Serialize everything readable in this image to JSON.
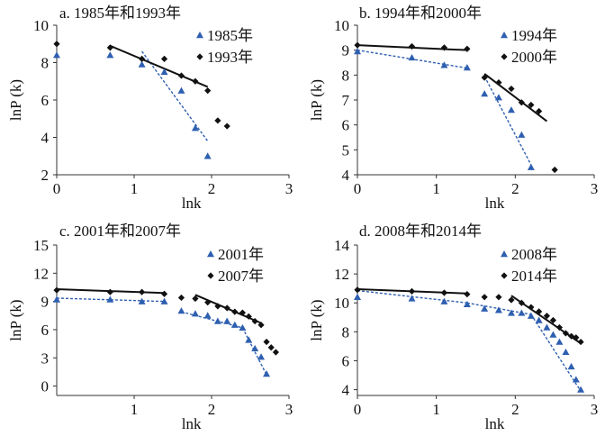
{
  "chart_data": [
    {
      "type": "scatter",
      "title": "a. 1985年和1993年",
      "xlabel": "lnk",
      "ylabel": "lnP (k)",
      "xlim": [
        0,
        3
      ],
      "ylim": [
        2,
        10
      ],
      "xticks": [
        "0",
        "1",
        "2",
        "3"
      ],
      "yticks": [
        "2",
        "4",
        "6",
        "8",
        "10"
      ],
      "legend_position": "top-right",
      "series": [
        {
          "name": "1985年",
          "marker": "triangle",
          "color": "#2e5fb0",
          "points": [
            [
              0,
              8.4
            ],
            [
              0.69,
              8.4
            ],
            [
              1.1,
              7.9
            ],
            [
              1.39,
              7.5
            ],
            [
              1.61,
              6.5
            ],
            [
              1.79,
              4.5
            ],
            [
              1.95,
              3.0
            ]
          ],
          "fit_line": [
            [
              1.1,
              8.6
            ],
            [
              1.95,
              3.8
            ]
          ],
          "fit_style": "dashed"
        },
        {
          "name": "1993年",
          "marker": "diamond",
          "color": "#111111",
          "points": [
            [
              0,
              9.0
            ],
            [
              0.69,
              8.8
            ],
            [
              1.1,
              8.2
            ],
            [
              1.39,
              8.2
            ],
            [
              1.61,
              7.3
            ],
            [
              1.79,
              7.0
            ],
            [
              1.95,
              6.5
            ],
            [
              2.08,
              4.9
            ],
            [
              2.2,
              4.6
            ]
          ],
          "fit_line": [
            [
              0.69,
              8.9
            ],
            [
              1.95,
              6.7
            ]
          ],
          "fit_style": "solid"
        }
      ]
    },
    {
      "type": "scatter",
      "title": "b. 1994年和2000年",
      "xlabel": "lnk",
      "ylabel": "lnP (k)",
      "xlim": [
        0,
        3
      ],
      "ylim": [
        4,
        10
      ],
      "xticks": [
        "0",
        "1",
        "2",
        "3"
      ],
      "yticks": [
        "4",
        "5",
        "6",
        "7",
        "8",
        "9",
        "10"
      ],
      "legend_position": "top-right",
      "series": [
        {
          "name": "1994年",
          "marker": "triangle",
          "color": "#2e5fb0",
          "points": [
            [
              0,
              8.95
            ],
            [
              0.69,
              8.7
            ],
            [
              1.1,
              8.4
            ],
            [
              1.39,
              8.3
            ],
            [
              1.61,
              7.25
            ],
            [
              1.79,
              7.1
            ],
            [
              1.95,
              6.6
            ],
            [
              2.08,
              5.6
            ],
            [
              2.2,
              4.3
            ]
          ],
          "segments": [
            {
              "line": [
                [
                  0,
                  9.0
                ],
                [
                  1.39,
                  8.28
                ]
              ],
              "style": "dashed"
            },
            {
              "line": [
                [
                  1.61,
                  7.95
                ],
                [
                  2.2,
                  4.4
                ]
              ],
              "style": "dashed"
            }
          ]
        },
        {
          "name": "2000年",
          "marker": "diamond",
          "color": "#111111",
          "points": [
            [
              0,
              9.2
            ],
            [
              0.69,
              9.15
            ],
            [
              1.1,
              9.1
            ],
            [
              1.39,
              9.05
            ],
            [
              1.61,
              7.9
            ],
            [
              1.79,
              7.7
            ],
            [
              1.95,
              7.45
            ],
            [
              2.08,
              6.9
            ],
            [
              2.2,
              6.8
            ],
            [
              2.3,
              6.55
            ],
            [
              2.5,
              4.2
            ]
          ],
          "segments": [
            {
              "line": [
                [
                  0,
                  9.2
                ],
                [
                  1.39,
                  9.0
                ]
              ],
              "style": "solid"
            },
            {
              "line": [
                [
                  1.61,
                  8.05
                ],
                [
                  2.4,
                  6.15
                ]
              ],
              "style": "solid"
            }
          ]
        }
      ]
    },
    {
      "type": "scatter",
      "title": "c. 2001年和2007年",
      "xlabel": "lnk",
      "ylabel": "lnP (k)",
      "xlim": [
        0,
        3
      ],
      "ylim": [
        -1,
        15
      ],
      "xticks": [
        "1",
        "2",
        "3"
      ],
      "yticks": [
        "0",
        "3",
        "6",
        "9",
        "12",
        "15"
      ],
      "legend_position": "top-right",
      "series": [
        {
          "name": "2001年",
          "marker": "triangle",
          "color": "#2e5fb0",
          "points": [
            [
              0,
              9.2
            ],
            [
              0.69,
              9.2
            ],
            [
              1.1,
              9.0
            ],
            [
              1.39,
              9.0
            ],
            [
              1.61,
              8.0
            ],
            [
              1.79,
              7.7
            ],
            [
              1.95,
              7.5
            ],
            [
              2.08,
              6.9
            ],
            [
              2.2,
              6.9
            ],
            [
              2.3,
              6.5
            ],
            [
              2.4,
              6.2
            ],
            [
              2.48,
              4.9
            ],
            [
              2.56,
              4.0
            ],
            [
              2.64,
              3.1
            ],
            [
              2.71,
              1.3
            ]
          ],
          "segments": [
            {
              "line": [
                [
                  0,
                  9.35
                ],
                [
                  1.39,
                  9.0
                ]
              ],
              "style": "dashed"
            },
            {
              "line": [
                [
                  1.61,
                  7.9
                ],
                [
                  2.4,
                  6.2
                ]
              ],
              "style": "dashed"
            },
            {
              "line": [
                [
                  2.4,
                  6.2
                ],
                [
                  2.71,
                  1.2
                ]
              ],
              "style": "dashed"
            }
          ]
        },
        {
          "name": "2007年",
          "marker": "diamond",
          "color": "#111111",
          "points": [
            [
              0,
              10.2
            ],
            [
              0.69,
              10.0
            ],
            [
              1.1,
              10.0
            ],
            [
              1.39,
              9.8
            ],
            [
              1.61,
              9.4
            ],
            [
              1.79,
              9.3
            ],
            [
              1.95,
              8.9
            ],
            [
              2.08,
              8.5
            ],
            [
              2.2,
              8.3
            ],
            [
              2.3,
              7.9
            ],
            [
              2.4,
              7.8
            ],
            [
              2.48,
              7.4
            ],
            [
              2.56,
              6.9
            ],
            [
              2.64,
              6.5
            ],
            [
              2.71,
              4.7
            ],
            [
              2.77,
              4.1
            ],
            [
              2.83,
              3.6
            ]
          ],
          "segments": [
            {
              "line": [
                [
                  0,
                  10.3
                ],
                [
                  1.39,
                  9.9
                ]
              ],
              "style": "solid"
            },
            {
              "line": [
                [
                  1.79,
                  9.7
                ],
                [
                  2.64,
                  6.7
                ]
              ],
              "style": "solid"
            }
          ]
        }
      ]
    },
    {
      "type": "scatter",
      "title": "d. 2008年和2014年",
      "xlabel": "lnk",
      "ylabel": "lnP (k)",
      "xlim": [
        0,
        3
      ],
      "ylim": [
        3.6,
        14
      ],
      "xticks": [
        "0",
        "1",
        "2",
        "3"
      ],
      "yticks": [
        "4",
        "6",
        "8",
        "10",
        "12",
        "14"
      ],
      "legend_position": "top-right",
      "series": [
        {
          "name": "2008年",
          "marker": "triangle",
          "color": "#2e5fb0",
          "points": [
            [
              0,
              10.4
            ],
            [
              0.69,
              10.3
            ],
            [
              1.1,
              10.1
            ],
            [
              1.39,
              9.9
            ],
            [
              1.61,
              9.6
            ],
            [
              1.79,
              9.5
            ],
            [
              1.95,
              9.3
            ],
            [
              2.08,
              9.3
            ],
            [
              2.2,
              9.1
            ],
            [
              2.3,
              8.8
            ],
            [
              2.4,
              8.3
            ],
            [
              2.48,
              7.8
            ],
            [
              2.56,
              7.3
            ],
            [
              2.64,
              6.6
            ],
            [
              2.71,
              5.6
            ],
            [
              2.77,
              4.7
            ],
            [
              2.83,
              4.0
            ]
          ],
          "segments": [
            {
              "line": [
                [
                  0,
                  10.85
                ],
                [
                  1.39,
                  10.0
                ]
              ],
              "style": "dashed"
            },
            {
              "line": [
                [
                  1.39,
                  10.0
                ],
                [
                  2.2,
                  9.2
                ]
              ],
              "style": "dashed"
            },
            {
              "line": [
                [
                  2.2,
                  9.2
                ],
                [
                  2.83,
                  3.9
                ]
              ],
              "style": "dashed"
            }
          ]
        },
        {
          "name": "2014年",
          "marker": "diamond",
          "color": "#111111",
          "points": [
            [
              0,
              10.9
            ],
            [
              0.69,
              10.8
            ],
            [
              1.1,
              10.7
            ],
            [
              1.39,
              10.6
            ],
            [
              1.61,
              10.4
            ],
            [
              1.79,
              10.4
            ],
            [
              1.95,
              10.2
            ],
            [
              2.08,
              10.0
            ],
            [
              2.2,
              9.7
            ],
            [
              2.3,
              9.4
            ],
            [
              2.4,
              9.1
            ],
            [
              2.48,
              8.8
            ],
            [
              2.56,
              8.3
            ],
            [
              2.64,
              7.9
            ],
            [
              2.71,
              7.7
            ],
            [
              2.77,
              7.6
            ],
            [
              2.83,
              7.3
            ]
          ],
          "segments": [
            {
              "line": [
                [
                  0,
                  10.95
                ],
                [
                  1.39,
                  10.65
                ]
              ],
              "style": "solid"
            },
            {
              "line": [
                [
                  1.95,
                  10.5
                ],
                [
                  2.83,
                  7.2
                ]
              ],
              "style": "solid"
            }
          ]
        }
      ]
    }
  ]
}
